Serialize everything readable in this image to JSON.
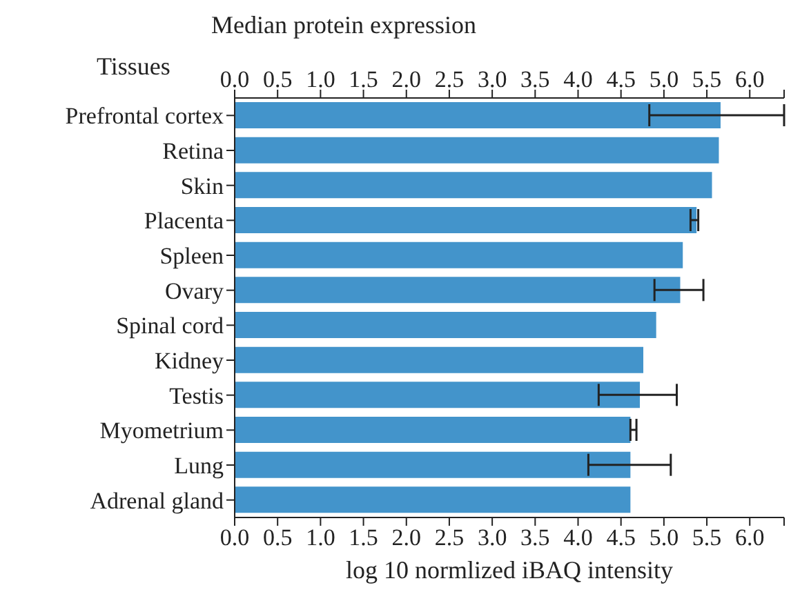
{
  "chart_data": {
    "type": "bar",
    "orientation": "horizontal",
    "title": "Median protein expression",
    "ylabel": "Tissues",
    "xlabel": "log 10 normlized iBAQ intensity",
    "categories": [
      "Prefrontal cortex",
      "Retina",
      "Skin",
      "Placenta",
      "Spleen",
      "Ovary",
      "Spinal cord",
      "Kidney",
      "Testis",
      "Myometrium",
      "Lung",
      "Adrenal gland"
    ],
    "values": [
      5.66,
      5.64,
      5.56,
      5.38,
      5.22,
      5.19,
      4.91,
      4.76,
      4.72,
      4.61,
      4.61,
      4.61
    ],
    "errors": [
      [
        4.83,
        6.4
      ],
      null,
      null,
      [
        5.31,
        5.4
      ],
      null,
      [
        4.89,
        5.46
      ],
      null,
      null,
      [
        4.24,
        5.15
      ],
      [
        4.61,
        4.68
      ],
      [
        4.12,
        5.08
      ],
      null
    ],
    "color": "#4394cb",
    "xlim": [
      0,
      6.4
    ],
    "xticks": [
      {
        "value": 0,
        "label": "0.0"
      },
      {
        "value": 0.5,
        "label": "0.5"
      },
      {
        "value": 1,
        "label": "1.0"
      },
      {
        "value": 1.5,
        "label": "1.5"
      },
      {
        "value": 2,
        "label": "2.0"
      },
      {
        "value": 2.5,
        "label": "2.5"
      },
      {
        "value": 3,
        "label": "3.0"
      },
      {
        "value": 3.5,
        "label": "3.5"
      },
      {
        "value": 4,
        "label": "4.0"
      },
      {
        "value": 4.5,
        "label": "4.5"
      },
      {
        "value": 5,
        "label": "5.0"
      },
      {
        "value": 5.5,
        "label": "5.5"
      },
      {
        "value": 6,
        "label": "6.0"
      },
      {
        "value": 6.4,
        "label": null
      }
    ],
    "x2lim": [
      0,
      6.4
    ],
    "x2ticks": [
      {
        "value": 0,
        "label": "0.0"
      },
      {
        "value": 0.5,
        "label": "0.5"
      },
      {
        "value": 1,
        "label": "1.0"
      },
      {
        "value": 1.5,
        "label": "1.5"
      },
      {
        "value": 2,
        "label": "2.0"
      },
      {
        "value": 2.5,
        "label": "2.5"
      },
      {
        "value": 3,
        "label": "3.0"
      },
      {
        "value": 3.5,
        "label": "3.5"
      },
      {
        "value": 4,
        "label": "4.0"
      },
      {
        "value": 4.5,
        "label": "4.5"
      },
      {
        "value": 5,
        "label": "5.0"
      },
      {
        "value": 5.5,
        "label": "5.5"
      },
      {
        "value": 6,
        "label": "6.0"
      },
      {
        "value": 6.4,
        "label": null
      }
    ],
    "grid": false,
    "legend": false
  }
}
